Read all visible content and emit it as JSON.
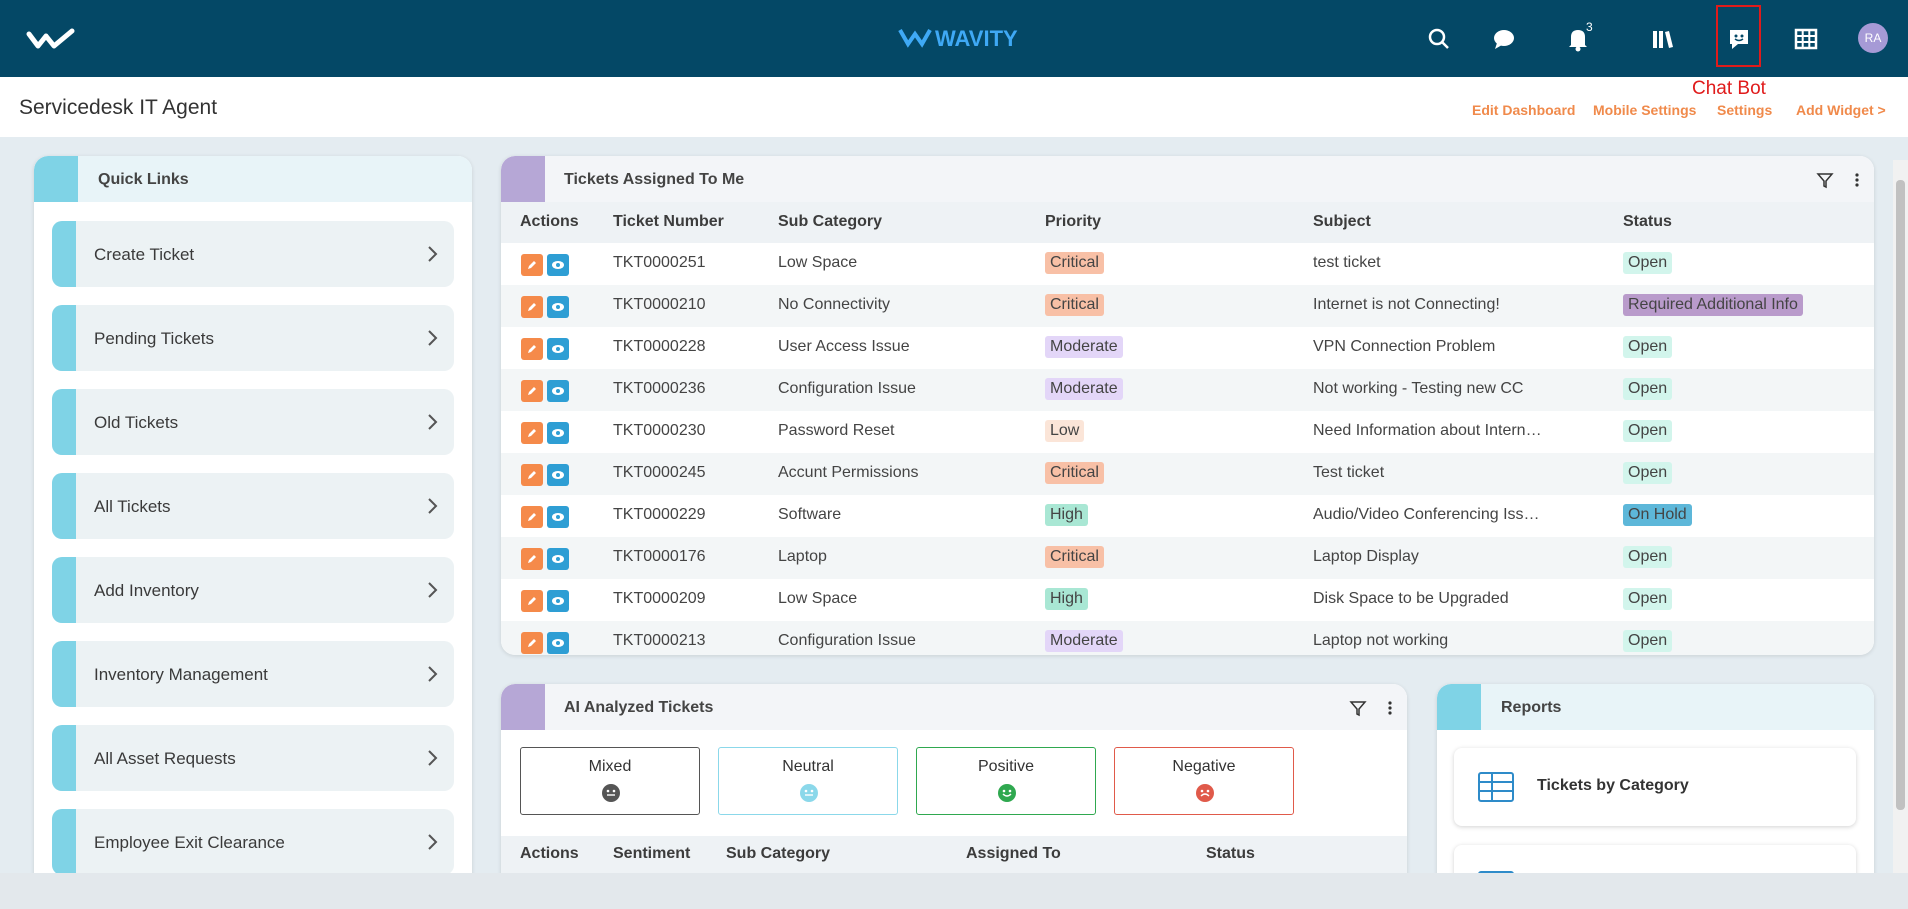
{
  "header": {
    "logo": "WAVITY",
    "notification_count": "3",
    "avatar": "RA",
    "annotation": "Chat Bot"
  },
  "subheader": {
    "title": "Servicedesk IT Agent",
    "actions": [
      "Edit Dashboard",
      "Mobile Settings",
      "Settings",
      "Add Widget >"
    ]
  },
  "quick_links": {
    "title": "Quick Links",
    "items": [
      "Create Ticket",
      "Pending Tickets",
      "Old Tickets",
      "All Tickets",
      "Add Inventory",
      "Inventory Management",
      "All Asset Requests",
      "Employee Exit Clearance"
    ]
  },
  "tickets": {
    "title": "Tickets Assigned To Me",
    "columns": [
      "Actions",
      "Ticket Number",
      "Sub Category",
      "Priority",
      "Subject",
      "Status"
    ],
    "rows": [
      [
        "TKT0000251",
        "Low Space",
        "Critical",
        "test ticket",
        "Open"
      ],
      [
        "TKT0000210",
        "No Connectivity",
        "Critical",
        "Internet is not Connecting!",
        "Required Additional Info"
      ],
      [
        "TKT0000228",
        "User Access Issue",
        "Moderate",
        "VPN Connection Problem",
        "Open"
      ],
      [
        "TKT0000236",
        "Configuration Issue",
        "Moderate",
        "Not working - Testing new CC",
        "Open"
      ],
      [
        "TKT0000230",
        "Password Reset",
        "Low",
        "Need Information about Intern…",
        "Open"
      ],
      [
        "TKT0000245",
        "Accunt Permissions",
        "Critical",
        "Test ticket",
        "Open"
      ],
      [
        "TKT0000229",
        "Software",
        "High",
        "Audio/Video Conferencing Iss…",
        "On Hold"
      ],
      [
        "TKT0000176",
        "Laptop",
        "Critical",
        "Laptop Display",
        "Open"
      ],
      [
        "TKT0000209",
        "Low Space",
        "High",
        "Disk Space to be Upgraded",
        "Open"
      ],
      [
        "TKT0000213",
        "Configuration Issue",
        "Moderate",
        "Laptop not working",
        "Open"
      ]
    ]
  },
  "ai_tickets": {
    "title": "AI Analyzed Tickets",
    "sentiments": [
      "Mixed",
      "Neutral",
      "Positive",
      "Negative"
    ],
    "columns": [
      "Actions",
      "Sentiment",
      "Sub Category",
      "Assigned To",
      "Status"
    ]
  },
  "reports": {
    "title": "Reports",
    "items": [
      "Tickets by Category"
    ]
  }
}
